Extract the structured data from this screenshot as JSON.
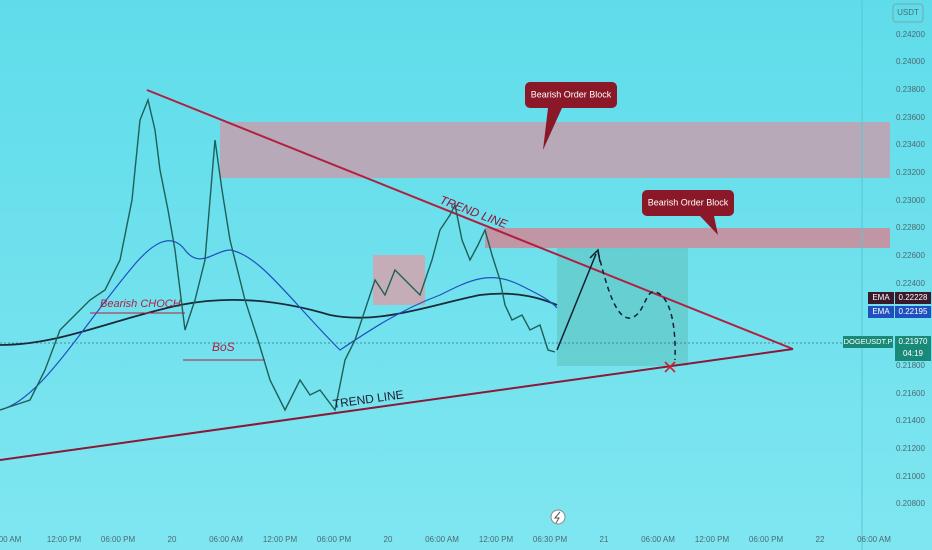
{
  "currency": "USDT",
  "price_axis": [
    "0.24200",
    "0.24000",
    "0.23800",
    "0.23600",
    "0.23400",
    "0.23200",
    "0.23000",
    "0.22800",
    "0.22600",
    "0.22400",
    "0.21800",
    "0.21600",
    "0.21400",
    "0.21200",
    "0.21000",
    "0.20800"
  ],
  "time_axis": [
    "00 AM",
    "12:00 PM",
    "06:00 PM",
    "20",
    "06:00 AM",
    "12:00 PM",
    "06:00 PM",
    "20",
    "06:00 AM",
    "12:00 PM",
    "06:30 PM",
    "21",
    "06:00 AM",
    "12:00 PM",
    "06:00 PM",
    "22",
    "06:00 AM"
  ],
  "badges": [
    {
      "label": "EMA",
      "value": "0.22228"
    },
    {
      "label": "EMA",
      "value": "0.22195"
    }
  ],
  "symbol": {
    "name": "DOGEUSDT.P",
    "price": "0.21970",
    "countdown": "04:19"
  },
  "annotations": {
    "order_block_1": "Bearish Order Block",
    "order_block_2": "Bearish Order Block",
    "trend_line_1": "TREND LINE",
    "trend_line_2": "TREND LINE",
    "choch": "Bearish CHOCH",
    "bos": "BoS"
  }
}
